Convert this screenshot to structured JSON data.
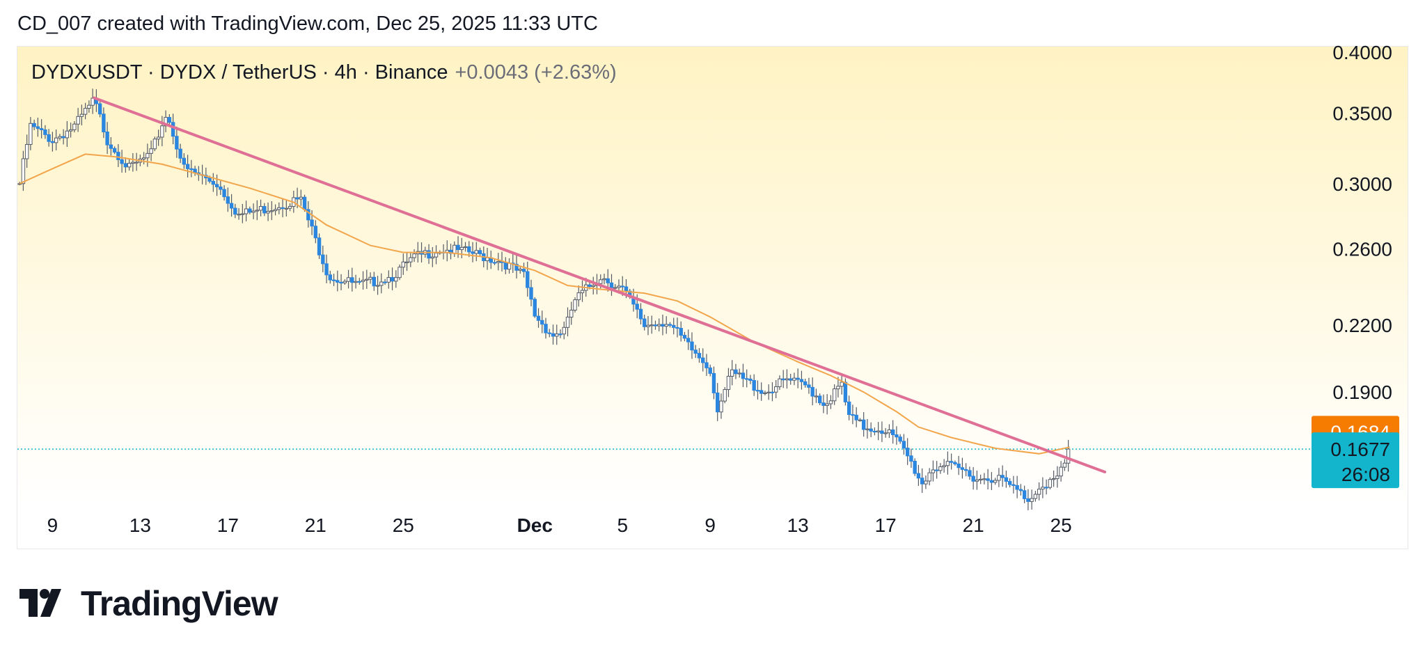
{
  "header": {
    "caption": "CD_007 created with TradingView.com, Dec 25, 2025 11:33 UTC"
  },
  "legend": {
    "symbol": "DYDXUSDT · DYDX / TetherUS · 4h · Binance",
    "change": "+0.0043 (+2.63%)"
  },
  "brand": {
    "name": "TradingView",
    "icon": "tradingview-logo-icon"
  },
  "colors": {
    "up_candle": "#ffffff",
    "down_candle": "#2b86df",
    "wick": "#555b66",
    "ma_line": "#f2a54a",
    "trendline": "#e06f95",
    "ma_badge": "#f57c00",
    "price_badge": "#12b5cb",
    "last_price_line": "#12b5cb",
    "background_top": "#fff3c4",
    "background_bottom": "#ffffff"
  },
  "chart_data": {
    "type": "candlestick",
    "symbol": "DYDXUSDT",
    "interval": "4h",
    "exchange": "Binance",
    "y_scale": "log",
    "ylim": [
      0.148,
      0.405
    ],
    "y_ticks": [
      "0.4000",
      "0.3500",
      "0.3000",
      "0.2600",
      "0.2200",
      "0.1900"
    ],
    "y_tick_values": [
      0.4,
      0.35,
      0.3,
      0.26,
      0.22,
      0.19
    ],
    "x_day_range": [
      7.4,
      66.3
    ],
    "x_ticks": [
      {
        "label": "9",
        "day": 9
      },
      {
        "label": "13",
        "day": 13
      },
      {
        "label": "17",
        "day": 17
      },
      {
        "label": "21",
        "day": 21
      },
      {
        "label": "25",
        "day": 25
      },
      {
        "label": "Dec",
        "day": 31,
        "bold": true
      },
      {
        "label": "5",
        "day": 35
      },
      {
        "label": "9",
        "day": 39
      },
      {
        "label": "13",
        "day": 43
      },
      {
        "label": "17",
        "day": 47
      },
      {
        "label": "21",
        "day": 51
      },
      {
        "label": "25",
        "day": 55
      }
    ],
    "price_anchors": [
      [
        7.5,
        0.3
      ],
      [
        8.0,
        0.34
      ],
      [
        9.0,
        0.33
      ],
      [
        10.0,
        0.34
      ],
      [
        10.9,
        0.36
      ],
      [
        11.5,
        0.33
      ],
      [
        12.5,
        0.31
      ],
      [
        13.5,
        0.32
      ],
      [
        14.2,
        0.35
      ],
      [
        15.0,
        0.31
      ],
      [
        16.5,
        0.3
      ],
      [
        17.5,
        0.28
      ],
      [
        19.0,
        0.285
      ],
      [
        20.3,
        0.29
      ],
      [
        21.0,
        0.265
      ],
      [
        21.6,
        0.245
      ],
      [
        23.0,
        0.24
      ],
      [
        24.5,
        0.245
      ],
      [
        25.5,
        0.255
      ],
      [
        26.7,
        0.26
      ],
      [
        28.0,
        0.258
      ],
      [
        29.5,
        0.253
      ],
      [
        30.5,
        0.245
      ],
      [
        31.0,
        0.225
      ],
      [
        31.8,
        0.215
      ],
      [
        32.4,
        0.218
      ],
      [
        32.8,
        0.232
      ],
      [
        34.0,
        0.245
      ],
      [
        35.0,
        0.238
      ],
      [
        36.0,
        0.22
      ],
      [
        37.0,
        0.222
      ],
      [
        38.0,
        0.21
      ],
      [
        39.0,
        0.2
      ],
      [
        39.3,
        0.183
      ],
      [
        40.0,
        0.198
      ],
      [
        41.5,
        0.19
      ],
      [
        42.5,
        0.195
      ],
      [
        43.5,
        0.192
      ],
      [
        44.2,
        0.185
      ],
      [
        45.0,
        0.193
      ],
      [
        45.3,
        0.18
      ],
      [
        46.0,
        0.176
      ],
      [
        47.0,
        0.175
      ],
      [
        47.6,
        0.17
      ],
      [
        48.0,
        0.165
      ],
      [
        48.7,
        0.155
      ],
      [
        49.0,
        0.16
      ],
      [
        49.5,
        0.162
      ],
      [
        50.5,
        0.16
      ],
      [
        51.3,
        0.157
      ],
      [
        52.0,
        0.158
      ],
      [
        53.0,
        0.153
      ],
      [
        53.6,
        0.15
      ],
      [
        54.0,
        0.155
      ],
      [
        54.8,
        0.157
      ],
      [
        55.2,
        0.162
      ],
      [
        55.4,
        0.1677
      ]
    ],
    "moving_average": [
      [
        7.5,
        0.3
      ],
      [
        9.0,
        0.31
      ],
      [
        10.5,
        0.32
      ],
      [
        12.0,
        0.318
      ],
      [
        14.0,
        0.313
      ],
      [
        16.0,
        0.305
      ],
      [
        18.0,
        0.297
      ],
      [
        20.0,
        0.288
      ],
      [
        21.5,
        0.274
      ],
      [
        23.5,
        0.262
      ],
      [
        25.0,
        0.258
      ],
      [
        27.0,
        0.258
      ],
      [
        29.0,
        0.255
      ],
      [
        31.0,
        0.248
      ],
      [
        32.5,
        0.24
      ],
      [
        34.0,
        0.238
      ],
      [
        36.0,
        0.236
      ],
      [
        37.5,
        0.232
      ],
      [
        39.0,
        0.224
      ],
      [
        41.0,
        0.212
      ],
      [
        43.0,
        0.203
      ],
      [
        44.5,
        0.197
      ],
      [
        46.0,
        0.19
      ],
      [
        47.5,
        0.182
      ],
      [
        48.5,
        0.176
      ],
      [
        50.0,
        0.172
      ],
      [
        52.0,
        0.168
      ],
      [
        54.0,
        0.166
      ],
      [
        55.4,
        0.1684
      ]
    ],
    "trendline": {
      "from": [
        10.9,
        0.362
      ],
      "to": [
        57.0,
        0.1595
      ]
    },
    "last_price": 0.1677,
    "badges": [
      {
        "label": "0.1684",
        "value": 0.1684,
        "kind": "ma"
      },
      {
        "label": "0.1677",
        "value": 0.1677,
        "kind": "last",
        "countdown": "26:08"
      }
    ]
  }
}
